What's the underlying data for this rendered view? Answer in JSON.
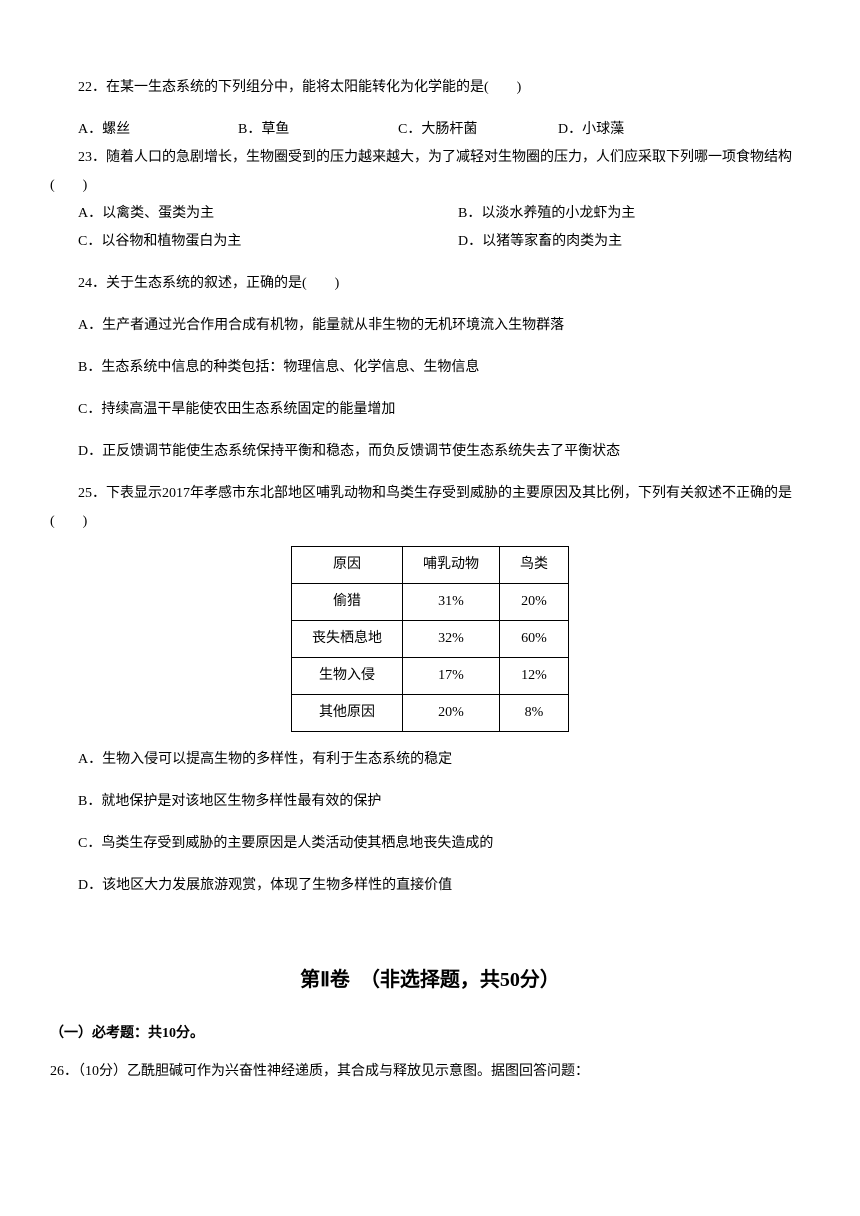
{
  "q22": {
    "text": "22．在某一生态系统的下列组分中，能将太阳能转化为化学能的是(　　)",
    "optA": "A．螺丝",
    "optB": "B．草鱼",
    "optC": "C．大肠杆菌",
    "optD": "D．小球藻"
  },
  "q23": {
    "text": "23．随着人口的急剧增长，生物圈受到的压力越来越大，为了减轻对生物圈的压力，人们应采取下列哪一项食物结构(　　)",
    "optA": "A．以禽类、蛋类为主",
    "optB": "B．以淡水养殖的小龙虾为主",
    "optC": "C．以谷物和植物蛋白为主",
    "optD": "D．以猪等家畜的肉类为主"
  },
  "q24": {
    "text": "24．关于生态系统的叙述，正确的是(　　)",
    "optA": "A．生产者通过光合作用合成有机物，能量就从非生物的无机环境流入生物群落",
    "optB": "B．生态系统中信息的种类包括：物理信息、化学信息、生物信息",
    "optC": "C．持续高温干旱能使农田生态系统固定的能量增加",
    "optD": "D．正反馈调节能使生态系统保持平衡和稳态，而负反馈调节使生态系统失去了平衡状态"
  },
  "q25": {
    "text": "25．下表显示2017年孝感市东北部地区哺乳动物和鸟类生存受到威胁的主要原因及其比例，下列有关叙述不正确的是(　　)",
    "optA": "A．生物入侵可以提高生物的多样性，有利于生态系统的稳定",
    "optB": "B．就地保护是对该地区生物多样性最有效的保护",
    "optC": "C．鸟类生存受到威胁的主要原因是人类活动使其栖息地丧失造成的",
    "optD": "D．该地区大力发展旅游观赏，体现了生物多样性的直接价值"
  },
  "table": {
    "headers": [
      "原因",
      "哺乳动物",
      "鸟类"
    ],
    "rows": [
      [
        "偷猎",
        "31%",
        "20%"
      ],
      [
        "丧失栖息地",
        "32%",
        "60%"
      ],
      [
        "生物入侵",
        "17%",
        "12%"
      ],
      [
        "其他原因",
        "20%",
        "8%"
      ]
    ]
  },
  "section2": {
    "title": "第Ⅱ卷　（非选择题，共50分）",
    "sub": "（一）必考题：共10分。"
  },
  "q26": {
    "text": "26．（10分）乙酰胆碱可作为兴奋性神经递质，其合成与释放见示意图。据图回答问题："
  }
}
